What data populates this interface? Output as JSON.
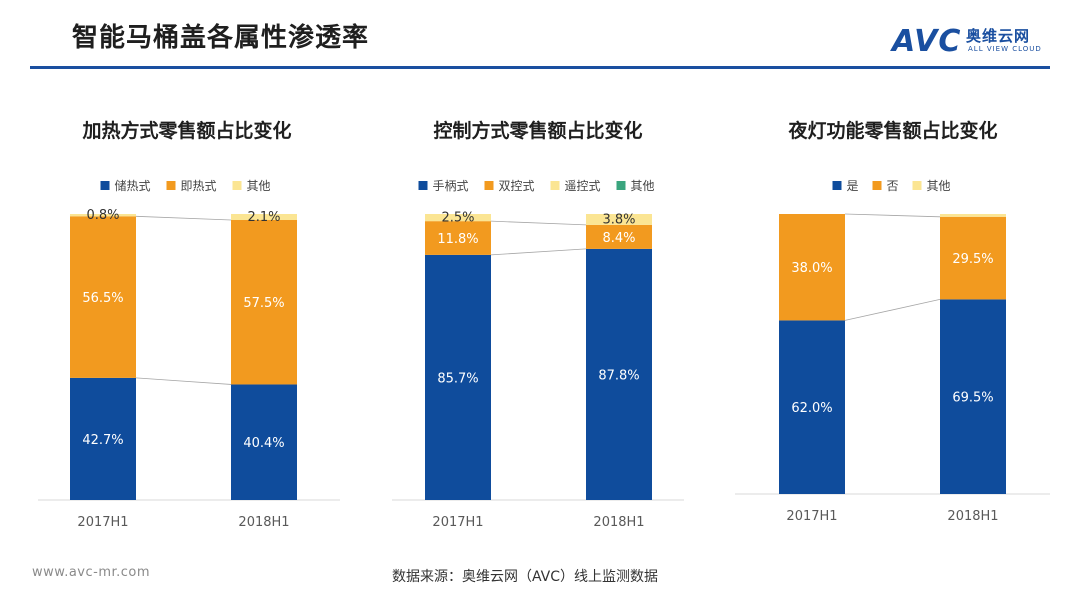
{
  "page": {
    "title": "智能马桶盖各属性渗透率",
    "logo_word": "AVC",
    "logo_cn": "奥维云网",
    "logo_en": "ALL VIEW CLOUD",
    "footer_url": "www.avc-mr.com",
    "footer_source": "数据来源：奥维云网（AVC）线上监测数据"
  },
  "colors": {
    "blue": "#0f4c9c",
    "orange": "#f29a1f",
    "yellow": "#fbe593",
    "green": "#3aa57e",
    "accent": "#1a4fa0"
  },
  "chart_data": [
    {
      "type": "bar",
      "stacked": true,
      "percent": true,
      "title": "加热方式零售额占比变化",
      "categories": [
        "2017H1",
        "2018H1"
      ],
      "legend_position": "top",
      "series": [
        {
          "name": "储热式",
          "values": [
            42.7,
            40.4
          ],
          "color": "#0f4c9c",
          "labels": [
            "42.7%",
            "40.4%"
          ]
        },
        {
          "name": "即热式",
          "values": [
            56.5,
            57.5
          ],
          "color": "#f29a1f",
          "labels": [
            "56.5%",
            "57.5%"
          ]
        },
        {
          "name": "其他",
          "values": [
            0.8,
            2.1
          ],
          "color": "#fbe593",
          "labels": [
            "0.8%",
            "2.1%"
          ]
        }
      ]
    },
    {
      "type": "bar",
      "stacked": true,
      "percent": true,
      "title": "控制方式零售额占比变化",
      "categories": [
        "2017H1",
        "2018H1"
      ],
      "legend_position": "top",
      "series": [
        {
          "name": "手柄式",
          "values": [
            85.7,
            87.8
          ],
          "color": "#0f4c9c",
          "labels": [
            "85.7%",
            "87.8%"
          ]
        },
        {
          "name": "双控式",
          "values": [
            11.8,
            8.4
          ],
          "color": "#f29a1f",
          "labels": [
            "11.8%",
            "8.4%"
          ]
        },
        {
          "name": "遥控式",
          "values": [
            2.5,
            3.8
          ],
          "color": "#fbe593",
          "labels": [
            "2.5%",
            "3.8%"
          ]
        },
        {
          "name": "其他",
          "values": [
            0.0,
            0.0
          ],
          "color": "#3aa57e",
          "labels": [
            "",
            ""
          ]
        }
      ]
    },
    {
      "type": "bar",
      "stacked": true,
      "percent": true,
      "title": "夜灯功能零售额占比变化",
      "categories": [
        "2017H1",
        "2018H1"
      ],
      "legend_position": "top",
      "series": [
        {
          "name": "是",
          "values": [
            62.0,
            69.5
          ],
          "color": "#0f4c9c",
          "labels": [
            "62.0%",
            "69.5%"
          ]
        },
        {
          "name": "否",
          "values": [
            38.0,
            29.5
          ],
          "color": "#f29a1f",
          "labels": [
            "38.0%",
            "29.5%"
          ]
        },
        {
          "name": "其他",
          "values": [
            0.0,
            1.0
          ],
          "color": "#fbe593",
          "labels": [
            "",
            ""
          ]
        }
      ]
    }
  ]
}
